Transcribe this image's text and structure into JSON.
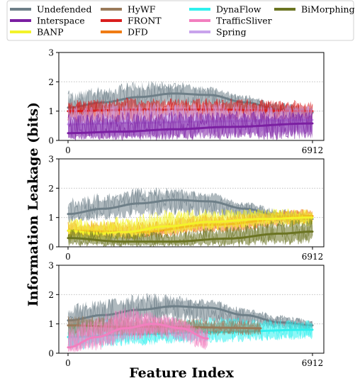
{
  "chart_data": {
    "type": "line",
    "xlabel": "Feature Index",
    "ylabel": "Information Leakage (bits)",
    "xlim": [
      0,
      6912
    ],
    "ylim": [
      0,
      3
    ],
    "xticks": [
      "0",
      "6912"
    ],
    "yticks": [
      "0",
      "1",
      "2",
      "3"
    ],
    "grid": "horizontal dotted",
    "legend_position": "top",
    "legend": [
      {
        "name": "Undefended",
        "color": "#6e7f88"
      },
      {
        "name": "Interspace",
        "color": "#7b1fa2"
      },
      {
        "name": "BANP",
        "color": "#f3f32a"
      },
      {
        "name": "HyWF",
        "color": "#9a7a5a"
      },
      {
        "name": "FRONT",
        "color": "#d91e1e"
      },
      {
        "name": "DFD",
        "color": "#f07c14"
      },
      {
        "name": "DynaFlow",
        "color": "#2ff0ee"
      },
      {
        "name": "TrafficSliver",
        "color": "#f27fbf"
      },
      {
        "name": "Spring",
        "color": "#c9a3ec"
      },
      {
        "name": "BiMorphing",
        "color": "#6b7422"
      }
    ],
    "panels": [
      {
        "series": [
          {
            "name": "Undefended",
            "color": "#6e7f88",
            "x_end": 6912,
            "trend_x": [
              0,
              1000,
              2000,
              3000,
              4000,
              5000,
              6000,
              6912
            ],
            "trend_y": [
              1.12,
              1.3,
              1.48,
              1.6,
              1.55,
              1.3,
              1.05,
              0.95
            ],
            "band_low": [
              0.8,
              0.9,
              1.0,
              1.05,
              1.0,
              0.9,
              0.8,
              0.75
            ],
            "band_high": [
              1.7,
              1.85,
              2.05,
              2.0,
              1.85,
              1.55,
              1.3,
              1.15
            ]
          },
          {
            "name": "FRONT",
            "color": "#d91e1e",
            "x_end": 6912,
            "trend_x": [
              0,
              2000,
              4000,
              6912
            ],
            "trend_y": [
              1.0,
              1.05,
              1.05,
              1.0
            ],
            "band_low": [
              0.5,
              0.6,
              0.65,
              0.6
            ],
            "band_high": [
              1.4,
              1.45,
              1.45,
              1.35
            ]
          },
          {
            "name": "Spring",
            "color": "#c9a3ec",
            "x_end": 6912,
            "trend_x": [
              0,
              2000,
              4000,
              6912
            ],
            "trend_y": [
              0.55,
              0.6,
              0.65,
              0.7
            ],
            "band_low": [
              0.0,
              0.05,
              0.1,
              0.1
            ],
            "band_high": [
              1.2,
              1.3,
              1.3,
              1.2
            ]
          },
          {
            "name": "Interspace",
            "color": "#7b1fa2",
            "x_end": 6912,
            "trend_x": [
              0,
              1500,
              3000,
              4500,
              6912
            ],
            "trend_y": [
              0.25,
              0.3,
              0.38,
              0.46,
              0.58
            ],
            "band_low": [
              0.0,
              0.0,
              0.0,
              0.0,
              0.0
            ],
            "band_high": [
              0.9,
              1.0,
              1.0,
              1.0,
              1.0
            ]
          }
        ]
      },
      {
        "series": [
          {
            "name": "Undefended",
            "color": "#6e7f88",
            "x_end": 6912,
            "trend_x": [
              0,
              1000,
              2000,
              3000,
              4000,
              5000,
              6000,
              6912
            ],
            "trend_y": [
              1.12,
              1.3,
              1.48,
              1.6,
              1.55,
              1.3,
              1.05,
              0.95
            ],
            "band_low": [
              0.8,
              0.9,
              1.0,
              1.05,
              1.0,
              0.9,
              0.8,
              0.75
            ],
            "band_high": [
              1.7,
              1.85,
              2.05,
              2.0,
              1.85,
              1.55,
              1.3,
              1.15
            ]
          },
          {
            "name": "DFD",
            "color": "#f07c14",
            "x_end": 6912,
            "trend_x": [
              0,
              2000,
              4000,
              6912
            ],
            "trend_y": [
              0.55,
              0.5,
              0.75,
              1.05
            ],
            "band_low": [
              0.3,
              0.25,
              0.45,
              0.75
            ],
            "band_high": [
              0.9,
              0.85,
              1.1,
              1.3
            ]
          },
          {
            "name": "BANP",
            "color": "#f3f32a",
            "x_end": 6912,
            "trend_x": [
              0,
              800,
              1600,
              2800,
              4000,
              5500,
              6912
            ],
            "trend_y": [
              0.55,
              0.45,
              0.5,
              0.7,
              0.85,
              0.95,
              1.0
            ],
            "band_low": [
              0.2,
              0.15,
              0.2,
              0.4,
              0.55,
              0.65,
              0.7
            ],
            "band_high": [
              1.0,
              0.95,
              1.05,
              1.25,
              1.3,
              1.3,
              1.3
            ]
          },
          {
            "name": "BiMorphing",
            "color": "#6b7422",
            "x_end": 6912,
            "trend_x": [
              0,
              1500,
              3000,
              4500,
              6000,
              6912
            ],
            "trend_y": [
              0.3,
              0.18,
              0.18,
              0.28,
              0.45,
              0.52
            ],
            "band_low": [
              0.0,
              0.0,
              0.0,
              0.0,
              0.05,
              0.1
            ],
            "band_high": [
              0.6,
              0.5,
              0.55,
              0.7,
              0.9,
              1.0
            ]
          }
        ]
      },
      {
        "series": [
          {
            "name": "Undefended",
            "color": "#6e7f88",
            "x_end": 6912,
            "trend_x": [
              0,
              1000,
              2000,
              3000,
              4000,
              5000,
              6000,
              6912
            ],
            "trend_y": [
              1.12,
              1.3,
              1.48,
              1.6,
              1.55,
              1.3,
              1.05,
              0.95
            ],
            "band_low": [
              0.8,
              0.9,
              1.0,
              1.05,
              1.0,
              0.9,
              0.8,
              0.75
            ],
            "band_high": [
              1.7,
              1.85,
              2.05,
              2.0,
              1.85,
              1.55,
              1.3,
              1.15
            ]
          },
          {
            "name": "DynaFlow",
            "color": "#2ff0ee",
            "x_end": 6912,
            "trend_x": [
              0,
              2000,
              4000,
              6912
            ],
            "trend_y": [
              0.55,
              0.65,
              0.72,
              0.8
            ],
            "band_low": [
              0.1,
              0.25,
              0.35,
              0.45
            ],
            "band_high": [
              1.1,
              1.2,
              1.25,
              1.15
            ]
          },
          {
            "name": "HyWF",
            "color": "#9a7a5a",
            "x_end": 5450,
            "trend_x": [
              0,
              1500,
              3000,
              4500,
              5450
            ],
            "trend_y": [
              0.95,
              0.9,
              0.9,
              0.87,
              0.85
            ],
            "band_low": [
              0.5,
              0.55,
              0.6,
              0.6,
              0.6
            ],
            "band_high": [
              1.3,
              1.25,
              1.2,
              1.15,
              1.1
            ]
          },
          {
            "name": "TrafficSliver",
            "color": "#f27fbf",
            "x_end": 3950,
            "trend_x": [
              0,
              800,
              1600,
              2400,
              3200,
              3950
            ],
            "trend_y": [
              0.2,
              0.55,
              0.85,
              1.0,
              0.85,
              0.5
            ],
            "band_low": [
              0.0,
              0.1,
              0.35,
              0.5,
              0.35,
              0.1
            ],
            "band_high": [
              0.9,
              1.3,
              1.6,
              1.45,
              1.2,
              0.8
            ]
          }
        ]
      }
    ]
  }
}
